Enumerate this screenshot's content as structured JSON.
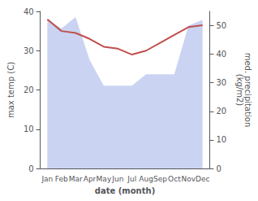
{
  "chart_data": {
    "type": "line",
    "categories": [
      "Jan",
      "Feb",
      "Mar",
      "Apr",
      "May",
      "Jun",
      "Jul",
      "Aug",
      "Sep",
      "Oct",
      "Nov",
      "Dec"
    ],
    "xlabel": "date (month)",
    "ylabel": "max temp (C)",
    "y2label": "med. precipitation\n(kg/m2)",
    "series": [
      {
        "type": "area",
        "axis": "y2",
        "color": "#b8c4ee",
        "values": [
          52,
          49,
          53,
          38,
          29,
          29,
          29,
          33,
          33,
          33,
          50,
          52
        ]
      },
      {
        "type": "line",
        "color": "#c0504d",
        "values": [
          38,
          35,
          34.5,
          33,
          31,
          30.5,
          29,
          30,
          32,
          34,
          36,
          36.5
        ]
      }
    ],
    "ylim": [
      0,
      40
    ],
    "yticks": [
      0,
      10,
      20,
      30,
      40
    ],
    "y2lim": [
      0,
      55
    ],
    "y2ticks": [
      0,
      10,
      20,
      30,
      40,
      50
    ],
    "grid": false
  }
}
